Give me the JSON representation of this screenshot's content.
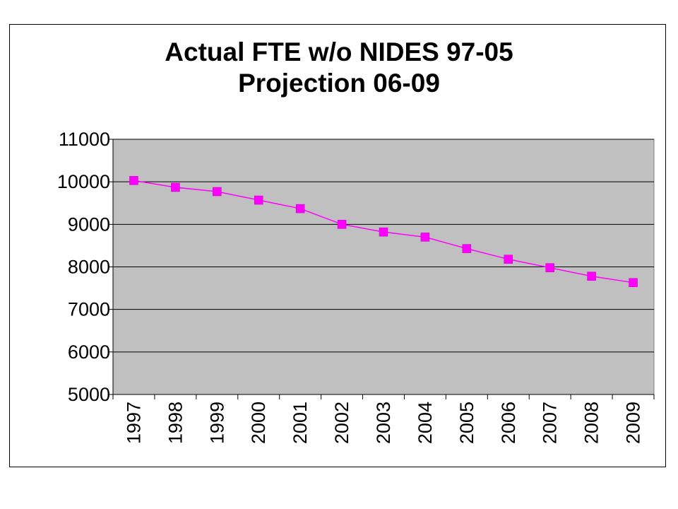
{
  "chart_data": {
    "type": "line",
    "title": [
      "Actual FTE w/o NIDES 97-05",
      "Projection 06-09"
    ],
    "xlabel": "",
    "ylabel": "",
    "categories": [
      "1997",
      "1998",
      "1999",
      "2000",
      "2001",
      "2002",
      "2003",
      "2004",
      "2005",
      "2006",
      "2007",
      "2008",
      "2009"
    ],
    "series": [
      {
        "values": [
          10030,
          9870,
          9770,
          9570,
          9370,
          9000,
          8820,
          8700,
          8430,
          8180,
          7980,
          7780,
          7630
        ]
      }
    ],
    "ylim": [
      5000,
      11000
    ],
    "yticks": [
      "5000",
      "6000",
      "7000",
      "8000",
      "9000",
      "10000",
      "11000"
    ],
    "grid": true,
    "legend": "none",
    "colors": {
      "line": "#ff00ff",
      "marker": "#ff00ff",
      "plot_background": "#c0c0c0",
      "gridline": "#000000"
    }
  }
}
